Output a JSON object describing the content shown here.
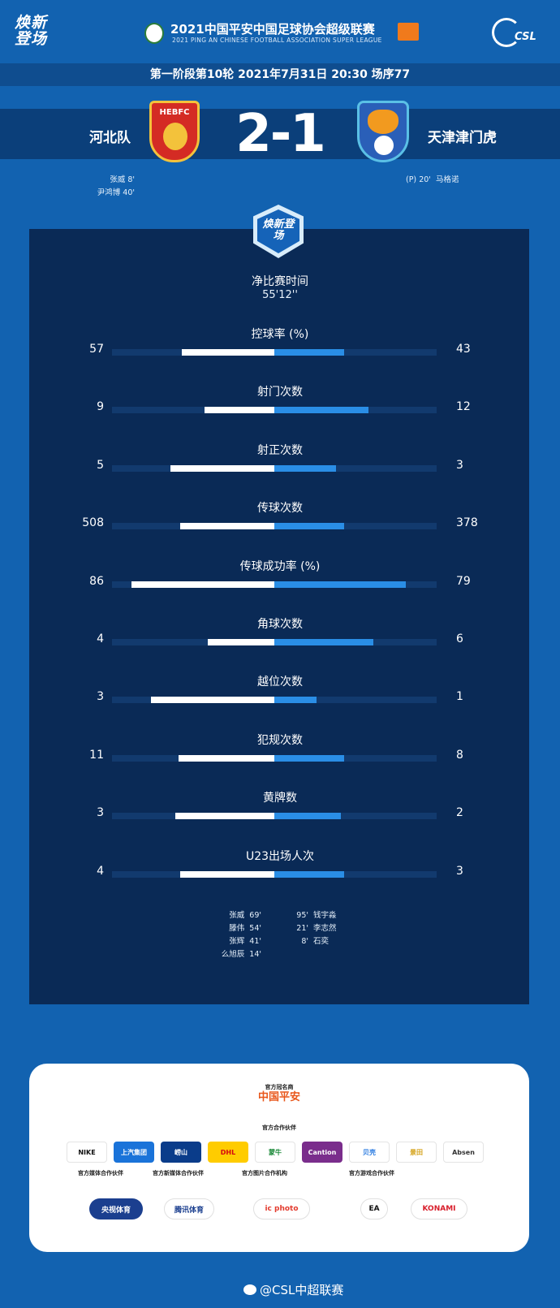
{
  "header": {
    "brand": "焕新登场",
    "league_title": "2021中国平安中国足球协会超级联赛",
    "league_subtitle": "2021 PING AN CHINESE FOOTBALL ASSOCIATION SUPER LEAGUE",
    "csl_logo_text": "CSL"
  },
  "match": {
    "round_info": "第一阶段第10轮  2021年7月31日 20:30 场序77",
    "home_team": "河北队",
    "away_team": "天津津门虎",
    "score": "2-1",
    "home_crest_text": "HEBFC",
    "home_scorers": [
      {
        "name": "张威",
        "minute": "8'"
      },
      {
        "name": "尹鸿博",
        "minute": "40'"
      }
    ],
    "away_scorers": [
      {
        "note": "(P)",
        "minute": "20'",
        "name": "马格诺"
      }
    ]
  },
  "badge_text": "焕新登场",
  "net_time": {
    "label": "净比赛时间",
    "value": "55'12''"
  },
  "stats": [
    {
      "label": "控球率 (%)",
      "home": "57",
      "away": "43",
      "home_frac": 0.57,
      "away_frac": 0.43
    },
    {
      "label": "射门次数",
      "home": "9",
      "away": "12",
      "home_frac": 0.43,
      "away_frac": 0.58
    },
    {
      "label": "射正次数",
      "home": "5",
      "away": "3",
      "home_frac": 0.64,
      "away_frac": 0.38
    },
    {
      "label": "传球次数",
      "home": "508",
      "away": "378",
      "home_frac": 0.58,
      "away_frac": 0.43
    },
    {
      "label": "传球成功率 (%)",
      "home": "86",
      "away": "79",
      "home_frac": 0.88,
      "away_frac": 0.81
    },
    {
      "label": "角球次数",
      "home": "4",
      "away": "6",
      "home_frac": 0.41,
      "away_frac": 0.61
    },
    {
      "label": "越位次数",
      "home": "3",
      "away": "1",
      "home_frac": 0.76,
      "away_frac": 0.26
    },
    {
      "label": "犯规次数",
      "home": "11",
      "away": "8",
      "home_frac": 0.59,
      "away_frac": 0.43
    },
    {
      "label": "黄牌数",
      "home": "3",
      "away": "2",
      "home_frac": 0.61,
      "away_frac": 0.41
    },
    {
      "label": "U23出场人次",
      "home": "4",
      "away": "3",
      "home_frac": 0.58,
      "away_frac": 0.43
    }
  ],
  "u23": {
    "home": [
      {
        "name": "张威",
        "minutes": "69'"
      },
      {
        "name": "滕伟",
        "minutes": "54'"
      },
      {
        "name": "张辉",
        "minutes": "41'"
      },
      {
        "name": "么旭辰",
        "minutes": "14'"
      }
    ],
    "away": [
      {
        "minutes": "95'",
        "name": "钱宇淼"
      },
      {
        "minutes": "21'",
        "name": "李志然"
      },
      {
        "minutes": "8'",
        "name": "石奕"
      }
    ]
  },
  "partners": {
    "title_sponsor_caption": "官方冠名商",
    "title_sponsor": "中国平安",
    "partners_caption": "官方合作伙伴",
    "partner_logos": [
      {
        "name": "NIKE",
        "bg": "#ffffff",
        "fg": "#111111"
      },
      {
        "name": "上汽集团",
        "bg": "#1a73d9",
        "fg": "#ffffff"
      },
      {
        "name": "崂山",
        "bg": "#0a3c8a",
        "fg": "#ffffff"
      },
      {
        "name": "DHL",
        "bg": "#ffcc00",
        "fg": "#d40511"
      },
      {
        "name": "蒙牛",
        "bg": "#ffffff",
        "fg": "#1c8a3a"
      },
      {
        "name": "Cantion",
        "bg": "#7a2d8c",
        "fg": "#ffffff"
      },
      {
        "name": "贝壳",
        "bg": "#ffffff",
        "fg": "#2a7be0"
      },
      {
        "name": "景田",
        "bg": "#ffffff",
        "fg": "#d4a21a"
      },
      {
        "name": "Absen",
        "bg": "#ffffff",
        "fg": "#333333"
      }
    ],
    "row2": [
      {
        "caption": "官方媒体合作伙伴",
        "logo": "央视体育",
        "bg": "#1b3f8f",
        "fg": "#ffffff"
      },
      {
        "caption": "官方新媒体合作伙伴",
        "logo": "腾讯体育",
        "bg": "#ffffff",
        "fg": "#1b3f8f"
      },
      {
        "caption": "官方图片合作机构",
        "logo": "ic photo",
        "bg": "#ffffff",
        "fg": "#e33b2e"
      },
      {
        "caption": "官方游戏合作伙伴",
        "logo": "EA",
        "bg": "#ffffff",
        "fg": "#111111"
      },
      {
        "caption": "",
        "logo": "KONAMI",
        "bg": "#ffffff",
        "fg": "#d81e2b"
      }
    ]
  },
  "footer": {
    "weibo": "@CSL中超联赛"
  }
}
